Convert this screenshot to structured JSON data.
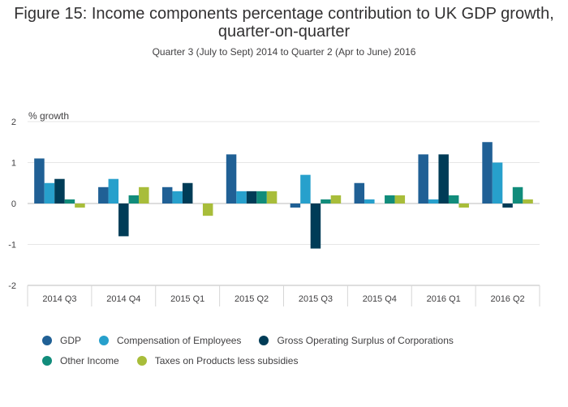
{
  "chart_data": {
    "type": "bar",
    "title_line1": "Figure 15: Income components percentage contribution to UK GDP growth,",
    "title_line2": "quarter-on-quarter",
    "subtitle": "Quarter 3 (July to Sept) 2014 to Quarter 2 (Apr to June) 2016",
    "ylabel": "% growth",
    "xlabel": "",
    "ylim": [
      -2,
      2
    ],
    "yticks": [
      "2",
      "1",
      "0",
      "-1",
      "-2"
    ],
    "grid": true,
    "legend_position": "bottom",
    "categories": [
      "2014 Q3",
      "2014 Q4",
      "2015 Q1",
      "2015 Q2",
      "2015 Q3",
      "2015 Q4",
      "2016 Q1",
      "2016 Q2"
    ],
    "series": [
      {
        "name": "GDP",
        "color": "#206095",
        "values": [
          1.1,
          0.4,
          0.4,
          1.2,
          -0.1,
          0.5,
          1.2,
          1.5
        ]
      },
      {
        "name": "Compensation of Employees",
        "color": "#27a0cc",
        "values": [
          0.5,
          0.6,
          0.3,
          0.3,
          0.7,
          0.1,
          0.1,
          1.0
        ]
      },
      {
        "name": "Gross Operating Surplus of Corporations",
        "color": "#003c57",
        "values": [
          0.6,
          -0.8,
          0.5,
          0.3,
          -1.1,
          0.0,
          1.2,
          -0.1
        ]
      },
      {
        "name": "Other Income",
        "color": "#118c7b",
        "values": [
          0.1,
          0.2,
          0.0,
          0.3,
          0.1,
          0.2,
          0.2,
          0.4
        ]
      },
      {
        "name": "Taxes on Products less subsidies",
        "color": "#a8bd3a",
        "values": [
          -0.1,
          0.4,
          -0.3,
          0.3,
          0.2,
          0.2,
          -0.1,
          0.1
        ]
      }
    ]
  }
}
